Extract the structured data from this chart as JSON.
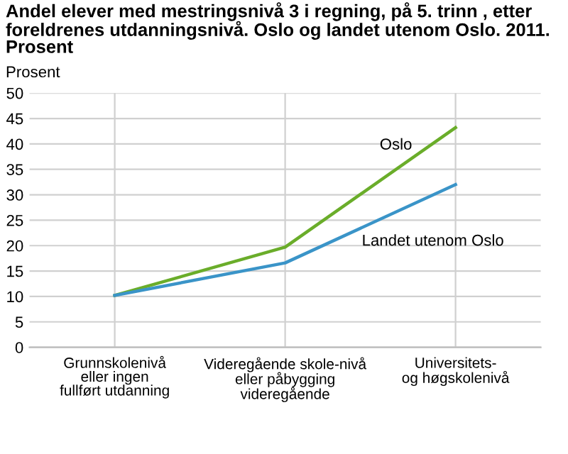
{
  "chart_data": {
    "type": "line",
    "title": "Andel elever med mestringsnivå 3 i regning, på 5. trinn , etter foreldrenes utdanningsnivå. Oslo og landet utenom Oslo. 2011. Prosent",
    "ylabel": "Prosent",
    "categories": [
      "Grunnskolenivå\neller ingen\nfullført utdanning",
      "Videregående skole-nivå\neller påbygging\nvideregående",
      "Universitets-\nog høgskolenivå"
    ],
    "series": [
      {
        "name": "Oslo",
        "color": "#6aad2a",
        "values": [
          10.2,
          19.7,
          43.2
        ]
      },
      {
        "name": "Landet utenom Oslo",
        "color": "#3a94c8",
        "values": [
          10.2,
          16.6,
          32.0
        ]
      }
    ],
    "ylim": [
      0,
      50
    ],
    "yticks": [
      0,
      5,
      10,
      15,
      20,
      25,
      30,
      35,
      40,
      45,
      50
    ],
    "grid": true,
    "legend": false,
    "marker": "none",
    "line_style": "solid"
  }
}
